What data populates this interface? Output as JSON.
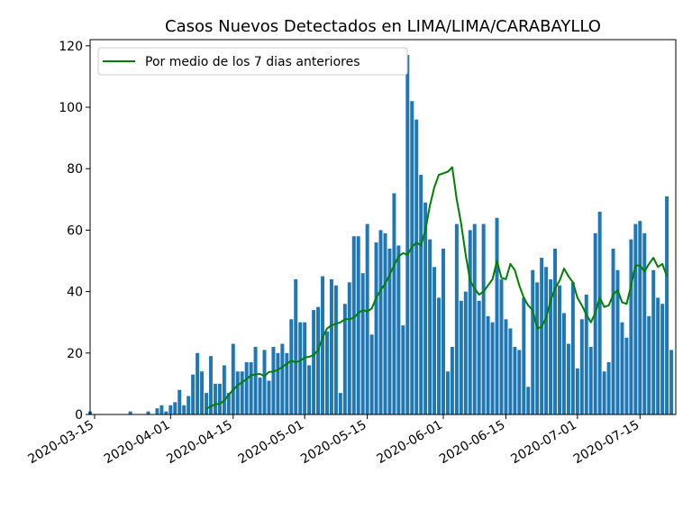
{
  "chart_data": {
    "type": "bar",
    "title": "Casos Nuevos Detectados en LIMA/LIMA/CARABAYLLO",
    "xlabel": "",
    "ylabel": "",
    "x_start_date": "2020-03-14",
    "x_range": [
      "2020-03-14",
      "2020-07-23"
    ],
    "ylim": [
      0,
      122
    ],
    "yticks": [
      0,
      20,
      40,
      60,
      80,
      100,
      120
    ],
    "xticks": [
      "2020-03-15",
      "2020-04-01",
      "2020-04-15",
      "2020-05-01",
      "2020-05-15",
      "2020-06-01",
      "2020-06-15",
      "2020-07-01",
      "2020-07-15"
    ],
    "grid": false,
    "legend_position": "top-left",
    "bar_color": "#1f77b4",
    "line_color": "#008000",
    "series": [
      {
        "name": "",
        "kind": "bar",
        "values": [
          1,
          0,
          0,
          0,
          0,
          0,
          0,
          0,
          0,
          1,
          0,
          0,
          0,
          1,
          0,
          2,
          3,
          1,
          3,
          4,
          8,
          3,
          6,
          13,
          20,
          14,
          7,
          19,
          10,
          10,
          16,
          7,
          23,
          14,
          14,
          17,
          17,
          22,
          12,
          21,
          11,
          22,
          20,
          23,
          20,
          31,
          44,
          30,
          30,
          16,
          34,
          35,
          45,
          27,
          44,
          42,
          7,
          36,
          43,
          58,
          58,
          46,
          62,
          26,
          56,
          60,
          59,
          54,
          72,
          55,
          29,
          117,
          102,
          96,
          78,
          69,
          57,
          48,
          38,
          54,
          14,
          22,
          62,
          37,
          40,
          60,
          62,
          37,
          62,
          32,
          30,
          64,
          44,
          31,
          28,
          22,
          21,
          38,
          9,
          47,
          43,
          51,
          48,
          44,
          54,
          42,
          33,
          23,
          43,
          15,
          31,
          39,
          22,
          59,
          66,
          14,
          17,
          54,
          47,
          30,
          25,
          57,
          62,
          63,
          59,
          32,
          47,
          38,
          36,
          71,
          21
        ]
      },
      {
        "name": "Por medio de los 7 dias anteriores",
        "kind": "line",
        "start_index": 26,
        "values": [
          1.8,
          2.7,
          3.3,
          3.5,
          4.5,
          6.5,
          8.0,
          9.5,
          10.5,
          11.5,
          12.8,
          13.0,
          13.2,
          12.5,
          13.8,
          14.0,
          14.5,
          15.5,
          16.5,
          17.5,
          17.0,
          17.5,
          18.5,
          18.8,
          19.3,
          21.0,
          25.0,
          28.0,
          29.0,
          29.5,
          30.0,
          31.0,
          31.0,
          31.5,
          33.0,
          34.0,
          33.5,
          34.5,
          38.0,
          40.5,
          42.5,
          45.5,
          48.5,
          51.5,
          52.5,
          52.0,
          54.5,
          56.0,
          55.0,
          60.0,
          68.0,
          74.0,
          78.0,
          78.5,
          79.0,
          80.5,
          70.0,
          62.0,
          52.0,
          43.5,
          41.0,
          39.0,
          40.0,
          42.0,
          44.0,
          50.0,
          44.5,
          44.0,
          49.0,
          47.0,
          42.0,
          38.0,
          35.5,
          34.0,
          28.0,
          28.5,
          31.5,
          37.0,
          41.0,
          43.5,
          47.5,
          45.0,
          43.0,
          38.0,
          35.5,
          32.5,
          30.0,
          33.0,
          38.0,
          35.0,
          35.5,
          39.0,
          40.5,
          36.5,
          36.0,
          42.0,
          48.5,
          48.5,
          46.5,
          49.0,
          51.0,
          48.0,
          49.0,
          45.0
        ]
      }
    ]
  }
}
